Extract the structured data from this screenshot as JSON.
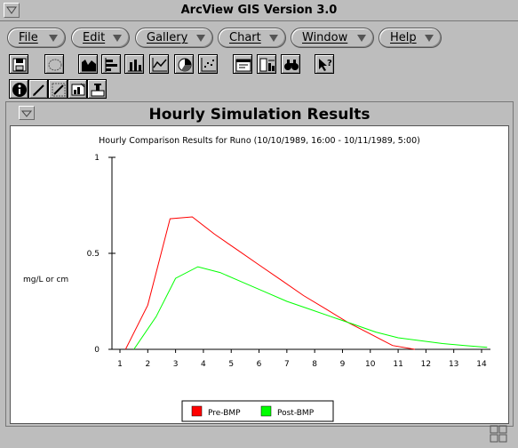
{
  "window": {
    "title": "ArcView GIS Version 3.0"
  },
  "menu": [
    "File",
    "Edit",
    "Gallery",
    "Chart",
    "Window",
    "Help"
  ],
  "toolbar_icons": [
    "save-icon",
    "select-icon",
    "area-chart-icon",
    "bar-chart-horizontal-icon",
    "bar-chart-icon",
    "line-chart-icon",
    "pie-chart-icon",
    "scatter-chart-icon",
    "chart-properties-icon",
    "series-icon",
    "find-icon",
    "help-pointer-icon"
  ],
  "tool_icons": [
    "identify-icon",
    "edit-pencil-icon",
    "erase-icon",
    "chart-element-icon",
    "title-tool-icon"
  ],
  "chart_window": {
    "title": "Hourly Simulation Results"
  },
  "colors": {
    "pre_bmp": "#ff0000",
    "post_bmp": "#00ff00",
    "panel": "#bdbdbd"
  },
  "chart_data": {
    "type": "line",
    "title": "Hourly Comparison Results for Runo (10/10/1989, 16:00 - 10/11/1989, 5:00)",
    "ylabel": "mg/L or cm",
    "xlabel": "",
    "xlim": [
      1,
      14
    ],
    "ylim": [
      0,
      1
    ],
    "x_ticks": [
      1,
      2,
      3,
      4,
      5,
      6,
      7,
      8,
      9,
      10,
      11,
      12,
      13,
      14
    ],
    "y_ticks": [
      0,
      0.5,
      1
    ],
    "y_tick_labels": [
      "0",
      "0.5",
      "1"
    ],
    "legend_position": "bottom-center",
    "series": [
      {
        "name": "Pre-BMP",
        "color": "#ff0000",
        "points": [
          [
            1.2,
            0
          ],
          [
            2,
            0.23
          ],
          [
            2.8,
            0.68
          ],
          [
            3.6,
            0.69
          ],
          [
            4.4,
            0.6
          ],
          [
            5.2,
            0.52
          ],
          [
            6,
            0.44
          ],
          [
            6.8,
            0.36
          ],
          [
            7.6,
            0.28
          ],
          [
            8.4,
            0.21
          ],
          [
            9.2,
            0.14
          ],
          [
            10,
            0.08
          ],
          [
            10.8,
            0.02
          ],
          [
            11.6,
            0
          ]
        ]
      },
      {
        "name": "Post-BMP",
        "color": "#00ff00",
        "points": [
          [
            1.5,
            0
          ],
          [
            2.3,
            0.17
          ],
          [
            3,
            0.37
          ],
          [
            3.8,
            0.43
          ],
          [
            4.6,
            0.4
          ],
          [
            5.4,
            0.35
          ],
          [
            6.2,
            0.3
          ],
          [
            7,
            0.25
          ],
          [
            7.8,
            0.21
          ],
          [
            8.6,
            0.17
          ],
          [
            9.4,
            0.13
          ],
          [
            10.2,
            0.09
          ],
          [
            11,
            0.06
          ],
          [
            11.8,
            0.045
          ],
          [
            12.6,
            0.03
          ],
          [
            13.4,
            0.02
          ],
          [
            14.2,
            0.01
          ]
        ]
      }
    ]
  }
}
